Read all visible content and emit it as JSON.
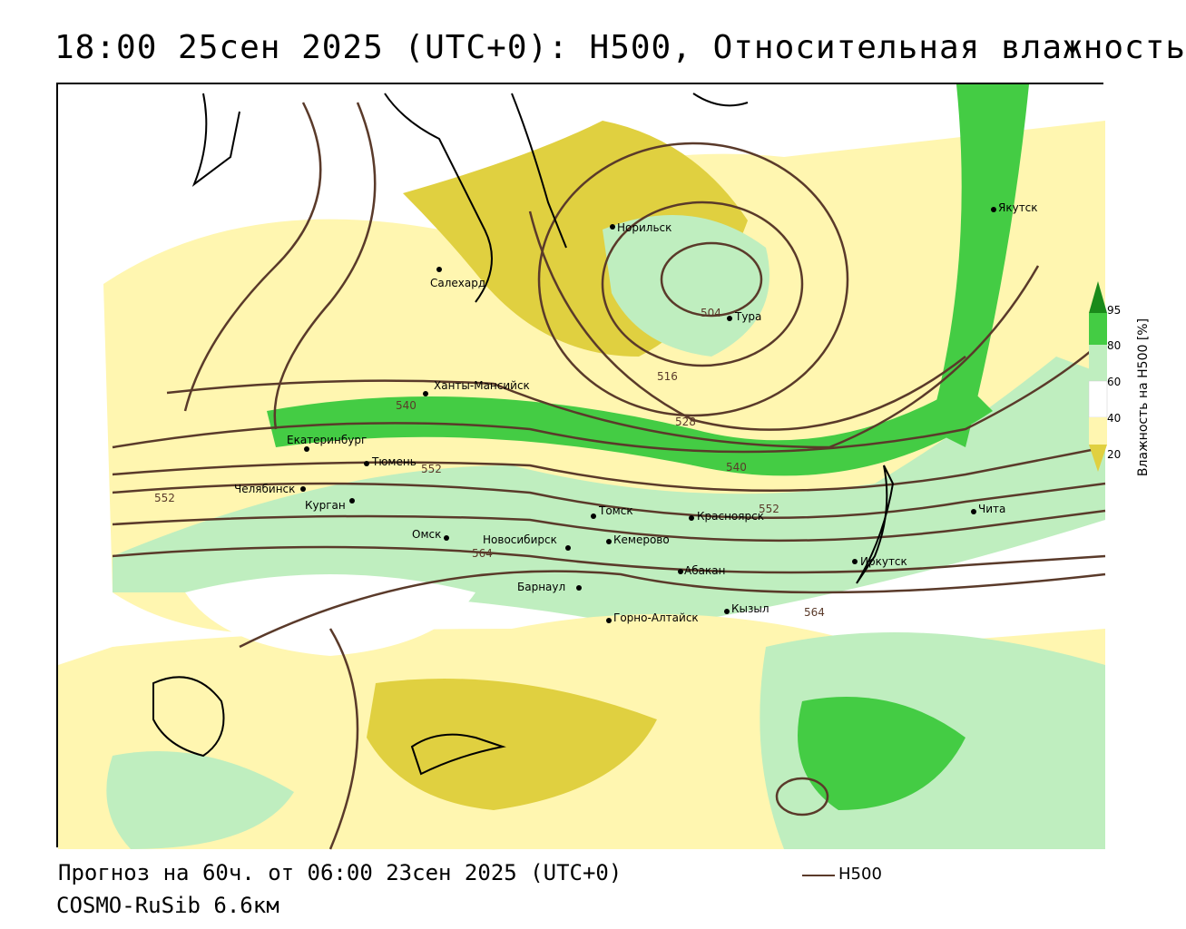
{
  "title": "18:00 25сен 2025 (UTC+0): H500, Относительная влажность",
  "footer": {
    "forecast": "Прогноз на 60ч. от 06:00 23сен 2025 (UTC+0)",
    "model": "COSMO-RuSib 6.6км"
  },
  "legend": {
    "line_label": "H500",
    "line_color": "#5a3a2a"
  },
  "colorbar": {
    "title": "Влажность на H500 [%]",
    "ticks": [
      "95",
      "80",
      "60",
      "40",
      "20"
    ],
    "colors": [
      "#1a8a1a",
      "#44cc44",
      "#bfeebf",
      "#ffffff",
      "#fff6b0",
      "#e0d040"
    ]
  },
  "cities": [
    {
      "name": "Норильск"
    },
    {
      "name": "Якутск"
    },
    {
      "name": "Салехард"
    },
    {
      "name": "Тура"
    },
    {
      "name": "Ханты-Мансийск"
    },
    {
      "name": "Екатеринбург"
    },
    {
      "name": "Тюмень"
    },
    {
      "name": "Челябинск"
    },
    {
      "name": "Курган"
    },
    {
      "name": "Омск"
    },
    {
      "name": "Новосибирск"
    },
    {
      "name": "Томск"
    },
    {
      "name": "Кемерово"
    },
    {
      "name": "Красноярск"
    },
    {
      "name": "Абакан"
    },
    {
      "name": "Барнаул"
    },
    {
      "name": "Горно-Алтайск"
    },
    {
      "name": "Кызыл"
    },
    {
      "name": "Иркутск"
    },
    {
      "name": "Чита"
    }
  ],
  "isolines": [
    "504",
    "516",
    "528",
    "540",
    "552",
    "564",
    "540",
    "552",
    "552",
    "564"
  ]
}
